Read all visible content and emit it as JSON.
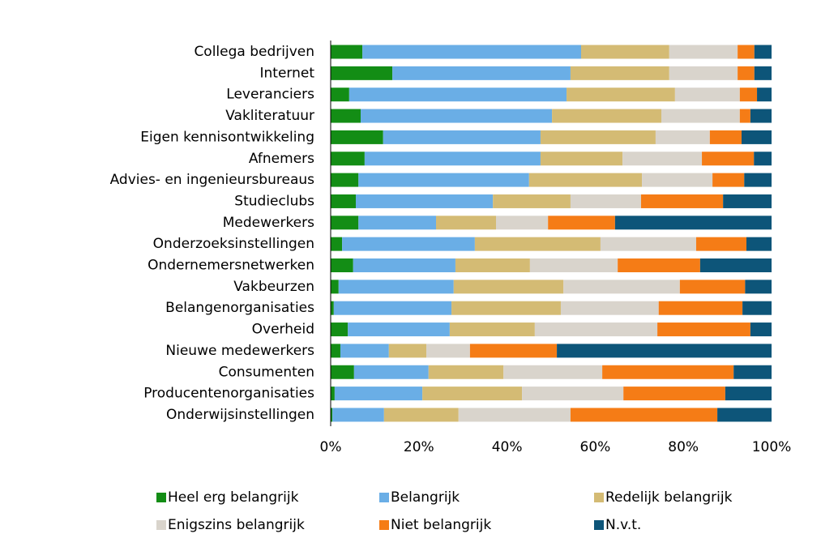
{
  "chart_data": {
    "type": "stacked_barh",
    "categories": [
      "Collega bedrijven",
      "Internet",
      "Leveranciers",
      "Vakliteratuur",
      "Eigen kennisontwikkeling",
      "Afnemers",
      "Advies- en ingenieursbureaus",
      "Studieclubs",
      "Medewerkers",
      "Onderzoeksinstellingen",
      "Ondernemersnetwerken",
      "Vakbeurzen",
      "Belangenorganisaties",
      "Overheid",
      "Nieuwe medewerkers",
      "Consumenten",
      "Producentenorganisaties",
      "Onderwijsinstellingen"
    ],
    "series": [
      {
        "name": "Heel erg belangrijk",
        "color": "#138d15",
        "values": [
          7.2,
          14,
          4.2,
          6.8,
          11.9,
          7.7,
          6.3,
          5.7,
          6.3,
          2.6,
          5.1,
          1.8,
          0.7,
          3.9,
          2.2,
          5.3,
          0.9,
          0.4
        ]
      },
      {
        "name": "Belangrijk",
        "color": "#6aaee6",
        "values": [
          49.6,
          40.4,
          49.3,
          43.4,
          35.7,
          39.9,
          38.7,
          31.1,
          17.6,
          30.1,
          23.2,
          26.1,
          26.7,
          23.1,
          11,
          16.9,
          19.9,
          11.7
        ]
      },
      {
        "name": "Redelijk belangrijk",
        "color": "#d4bb74",
        "values": [
          20,
          22.4,
          24.6,
          24.8,
          26.1,
          18.6,
          25.6,
          17.6,
          13.6,
          28.5,
          16.9,
          24.9,
          24.8,
          19.3,
          8.5,
          17,
          22.6,
          16.9
        ]
      },
      {
        "name": "Enigszins belangrijk",
        "color": "#d9d4cc",
        "values": [
          15.5,
          15.5,
          14.7,
          17.8,
          12.3,
          18,
          16,
          16,
          11.8,
          21.7,
          19.9,
          26.4,
          22.2,
          27.8,
          9.9,
          22.4,
          23,
          25.4
        ]
      },
      {
        "name": "Niet belangrijk",
        "color": "#f57c16",
        "values": [
          3.8,
          3.8,
          3.9,
          2.4,
          7.2,
          11.8,
          7.2,
          18.6,
          15.2,
          11.4,
          18.7,
          14.8,
          19,
          21.1,
          19.7,
          29.8,
          23.1,
          33.3
        ]
      },
      {
        "name": "N.v.t.",
        "color": "#0d5579",
        "values": [
          3.9,
          3.9,
          3.3,
          4.8,
          6.8,
          4,
          6.2,
          11,
          35.5,
          5.7,
          16.2,
          6,
          6.6,
          4.8,
          48.7,
          8.6,
          10.5,
          12.3
        ]
      }
    ],
    "xlim": [
      0,
      100
    ],
    "xticks": [
      {
        "value": 0,
        "label": "0%"
      },
      {
        "value": 20,
        "label": "20%"
      },
      {
        "value": 40,
        "label": "40%"
      },
      {
        "value": 60,
        "label": "60%"
      },
      {
        "value": 80,
        "label": "80%"
      },
      {
        "value": 100,
        "label": "100%"
      }
    ],
    "legend": "bottom"
  }
}
